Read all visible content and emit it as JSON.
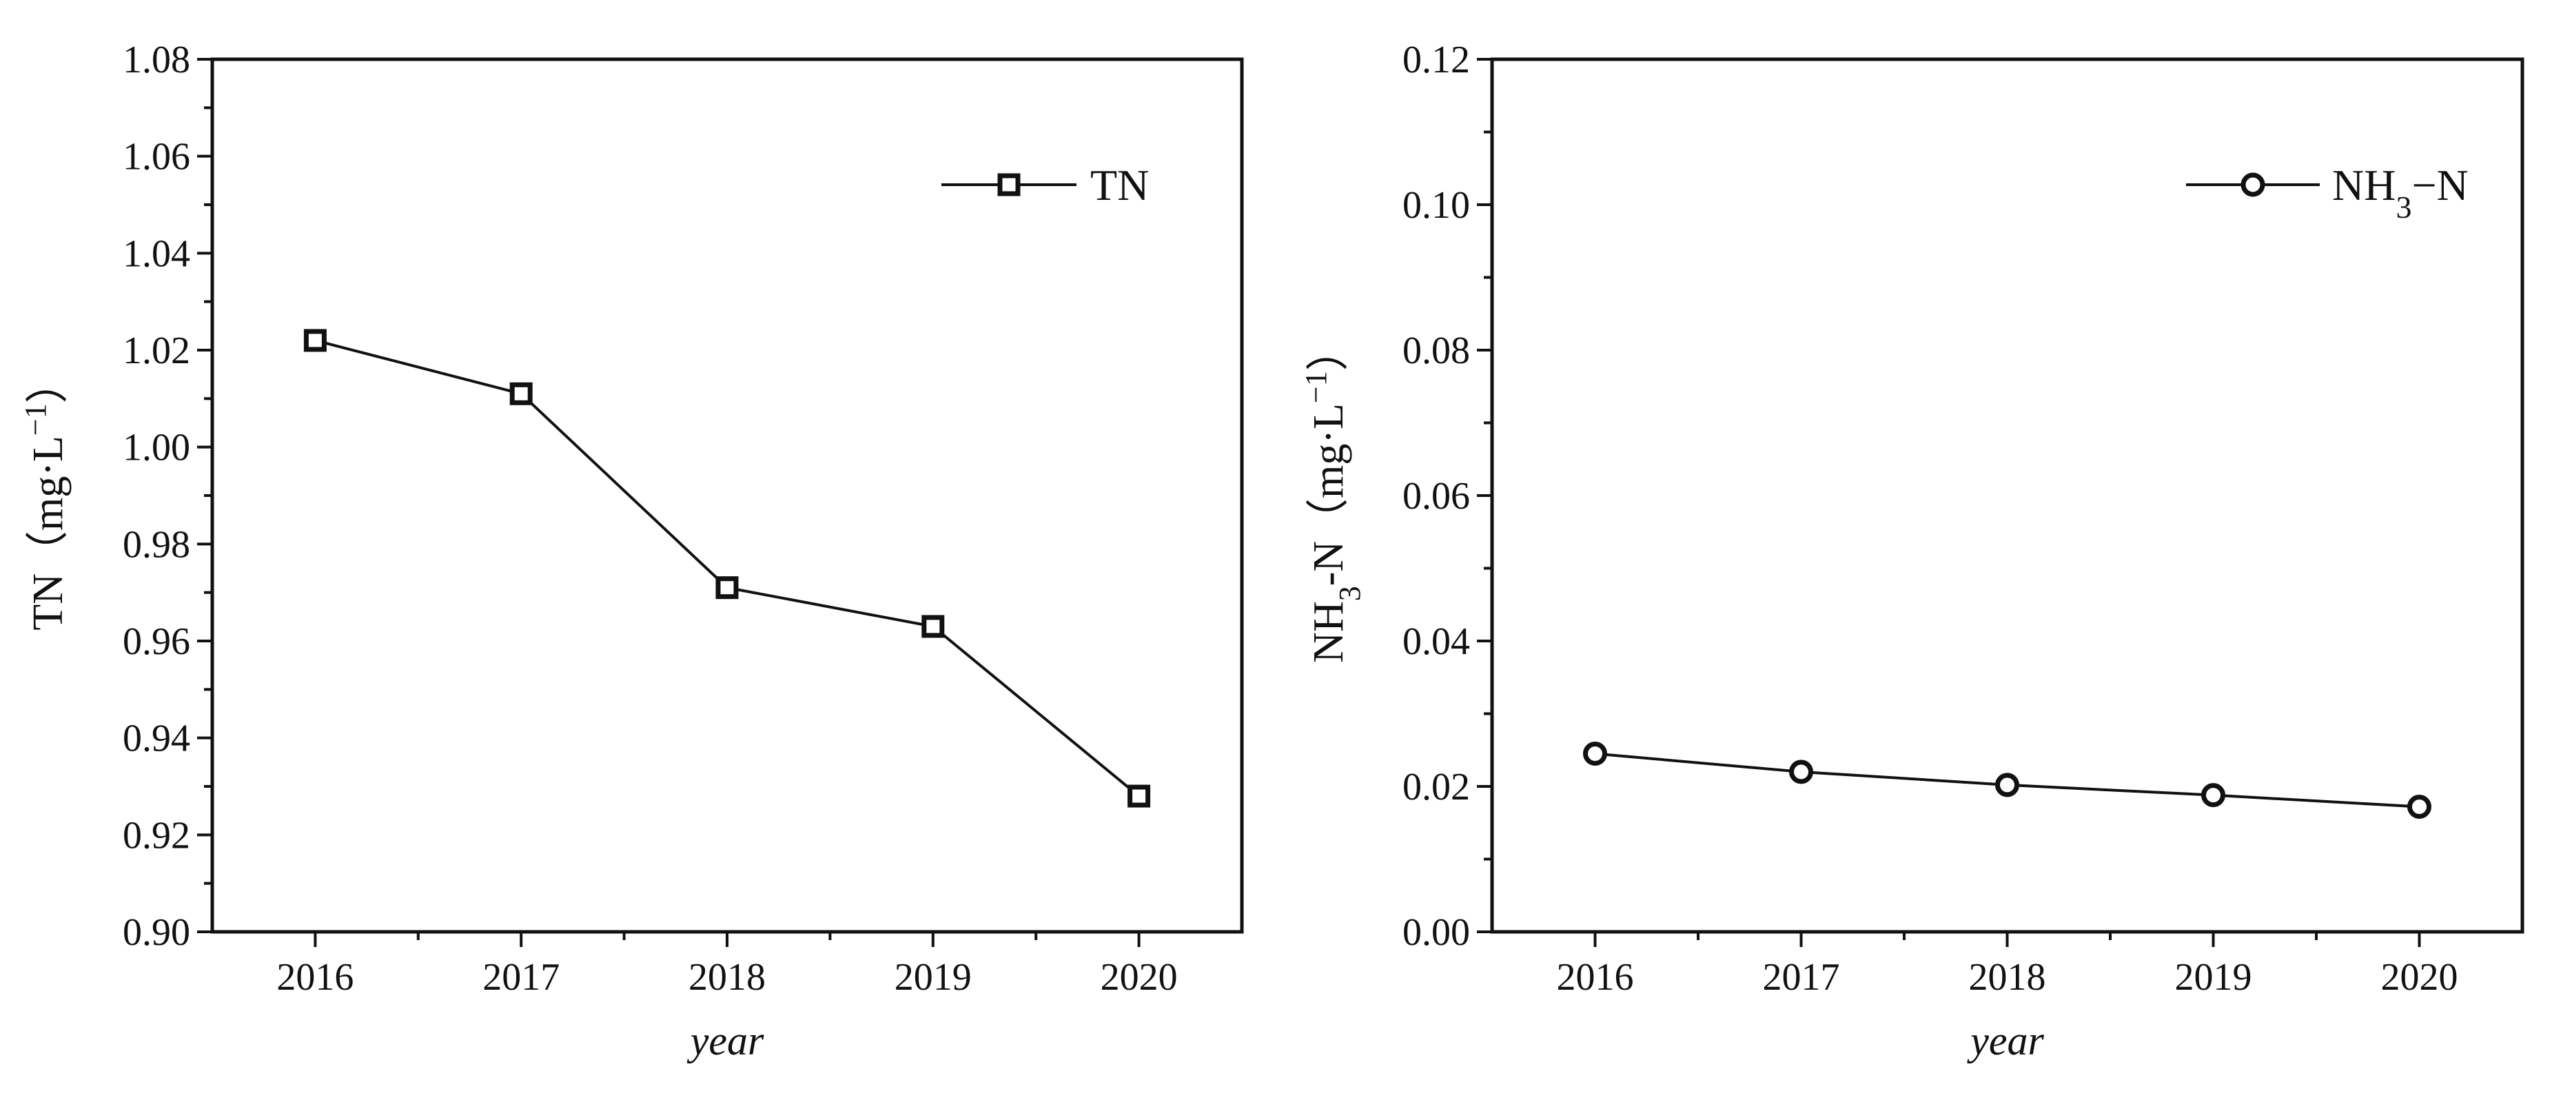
{
  "chart_data": [
    {
      "type": "line",
      "categories": [
        "2016",
        "2017",
        "2018",
        "2019",
        "2020"
      ],
      "series": [
        {
          "name": "TN",
          "values": [
            1.022,
            1.011,
            0.971,
            0.963,
            0.928
          ]
        }
      ],
      "marker": "square",
      "xlabel": "year",
      "ylabel": {
        "main": "TN（mg·L",
        "sup": "−1",
        "close": "）"
      },
      "ylim": [
        0.9,
        1.08
      ],
      "yticks": [
        "0.90",
        "0.92",
        "0.94",
        "0.96",
        "0.98",
        "1.00",
        "1.02",
        "1.04",
        "1.06",
        "1.08"
      ],
      "ytick_values": [
        0.9,
        0.92,
        0.94,
        0.96,
        0.98,
        1.0,
        1.02,
        1.04,
        1.06,
        1.08
      ],
      "legend": {
        "position": "top-right",
        "entries": [
          {
            "main": "TN",
            "sub": "",
            "suffix": ""
          }
        ]
      },
      "grid": false
    },
    {
      "type": "line",
      "categories": [
        "2016",
        "2017",
        "2018",
        "2019",
        "2020"
      ],
      "series": [
        {
          "name": "NH3−N",
          "values": [
            0.0245,
            0.022,
            0.0202,
            0.0188,
            0.0172
          ]
        }
      ],
      "marker": "circle",
      "xlabel": "year",
      "ylabel": {
        "main": "NH",
        "sub": "3",
        "mid": "-N（mg·L",
        "sup": "−1",
        "close": "）"
      },
      "ylim": [
        0.0,
        0.12
      ],
      "yticks": [
        "0.00",
        "0.02",
        "0.04",
        "0.06",
        "0.08",
        "0.10",
        "0.12"
      ],
      "ytick_values": [
        0.0,
        0.02,
        0.04,
        0.06,
        0.08,
        0.1,
        0.12
      ],
      "legend": {
        "position": "top-right",
        "entries": [
          {
            "main": "NH",
            "sub": "3",
            "suffix": "−N"
          }
        ]
      },
      "grid": false
    }
  ]
}
